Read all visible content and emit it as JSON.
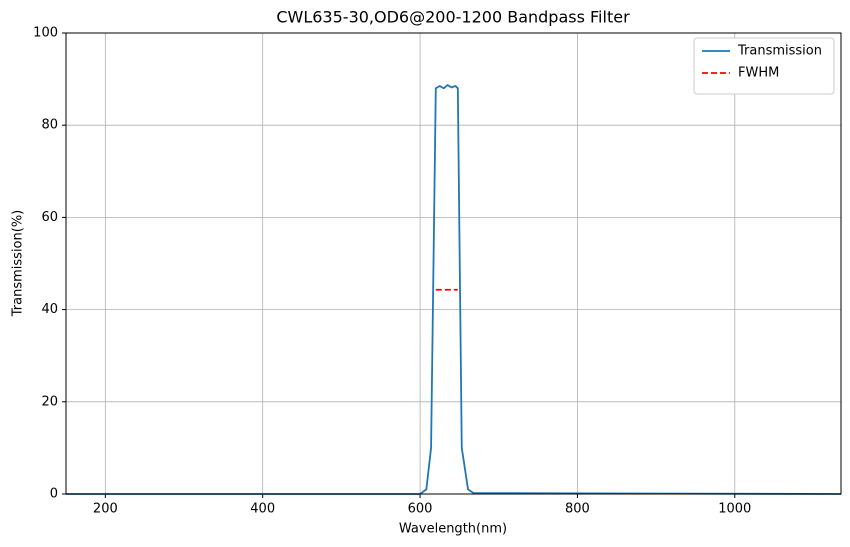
{
  "chart_data": {
    "type": "line",
    "title": "CWL635-30,OD6@200-1200 Bandpass Filter",
    "x_label": "Wavelength(nm)",
    "y_label": "Transmission(%)",
    "series": [
      {
        "name": "Transmission",
        "color": "#1f77b4",
        "linestyle": "solid",
        "x": [
          150,
          600,
          608,
          614,
          620,
          625,
          630,
          635,
          640,
          645,
          648,
          653,
          661,
          668,
          1135
        ],
        "values": [
          0,
          0,
          1,
          10,
          88,
          88.5,
          88,
          88.7,
          88.2,
          88.5,
          88,
          10,
          1,
          0.2,
          0
        ]
      },
      {
        "name": "FWHM",
        "color": "#ff0000",
        "linestyle": "dashed",
        "x": [
          620,
          648
        ],
        "values": [
          44.3,
          44.3
        ]
      }
    ],
    "xlim": [
      150,
      1135
    ],
    "ylim": [
      0,
      100
    ],
    "xticks": [
      200,
      400,
      600,
      800,
      1000
    ],
    "yticks": [
      0,
      20,
      40,
      60,
      80,
      100
    ],
    "grid": true,
    "legend": "upper right"
  }
}
